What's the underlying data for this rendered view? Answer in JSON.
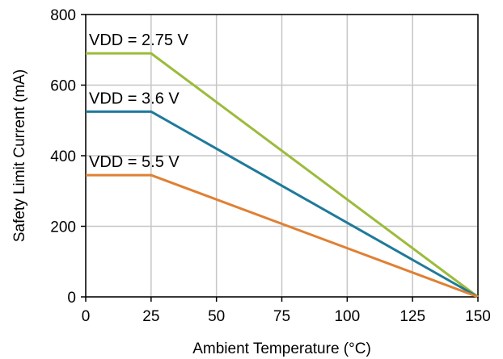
{
  "chart_data": {
    "type": "line",
    "title": "",
    "xlabel": "Ambient Temperature (°C)",
    "ylabel": "Safety Limit Current (mA)",
    "xlim": [
      0,
      150
    ],
    "ylim": [
      0,
      800
    ],
    "xticks": [
      0,
      25,
      50,
      75,
      100,
      125,
      150
    ],
    "yticks": [
      0,
      200,
      400,
      600,
      800
    ],
    "grid": true,
    "legend": "none",
    "series": [
      {
        "name": "VDD = 2.75 V",
        "color": "#9cbb3c",
        "x": [
          0,
          25,
          150
        ],
        "y": [
          690,
          690,
          0
        ]
      },
      {
        "name": "VDD = 3.6 V",
        "color": "#1f7a9a",
        "x": [
          0,
          25,
          150
        ],
        "y": [
          525,
          525,
          0
        ]
      },
      {
        "name": "VDD = 5.5 V",
        "color": "#e08033",
        "x": [
          0,
          25,
          150
        ],
        "y": [
          345,
          345,
          0
        ]
      }
    ]
  }
}
